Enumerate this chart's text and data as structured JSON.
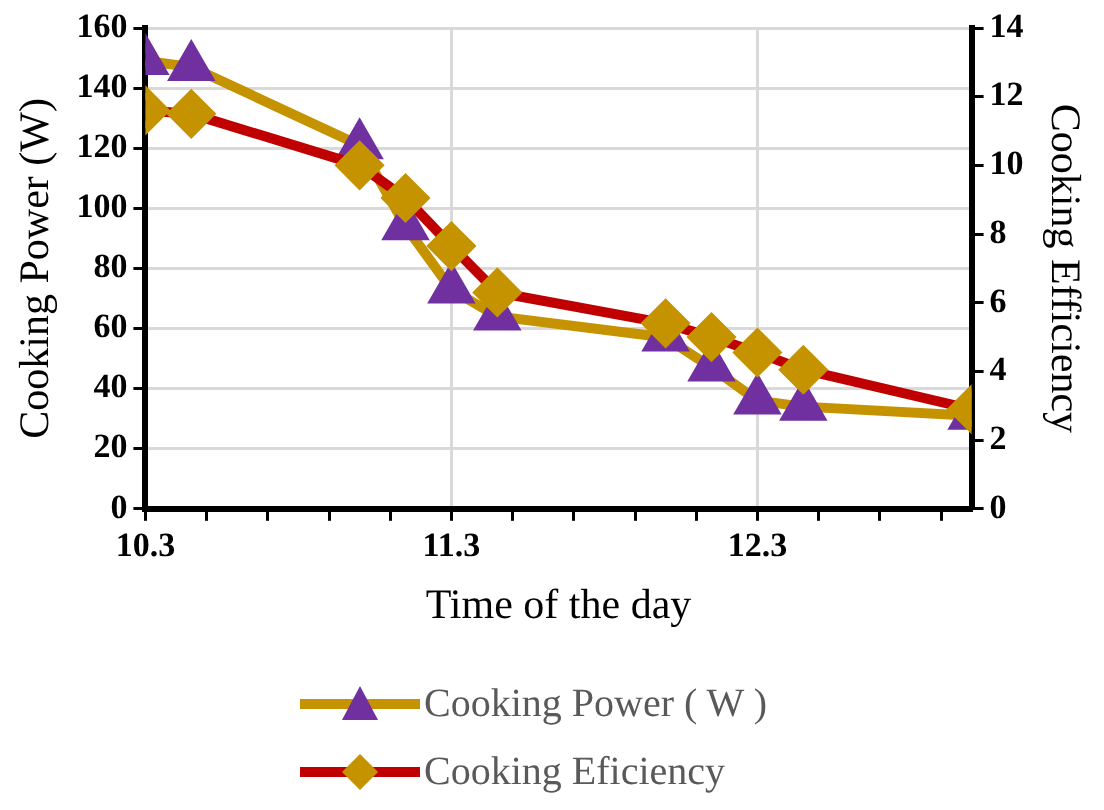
{
  "chart_data": {
    "type": "line",
    "xlabel": "Time of the day",
    "ylabel": "Cooking Power (W)",
    "y2label": "Cooking Efficiency",
    "x": [
      10.3,
      10.45,
      11.0,
      11.15,
      11.3,
      11.45,
      12.0,
      12.15,
      12.3,
      12.45,
      13.0
    ],
    "xlim": [
      10.3,
      13.0
    ],
    "xticks": [
      10.3,
      {
        "value": 10.5,
        "label": null
      },
      {
        "value": 10.7,
        "label": null
      },
      {
        "value": 10.9,
        "label": null
      },
      {
        "value": 11.1,
        "label": null
      },
      11.3,
      {
        "value": 11.5,
        "label": null
      },
      {
        "value": 11.7,
        "label": null
      },
      {
        "value": 11.9,
        "label": null
      },
      {
        "value": 12.1,
        "label": null
      },
      12.3,
      {
        "value": 12.5,
        "label": null
      },
      {
        "value": 12.7,
        "label": null
      },
      {
        "value": 12.9,
        "label": null
      }
    ],
    "ylim": [
      0,
      160
    ],
    "yticks": [
      0,
      20,
      40,
      60,
      80,
      100,
      120,
      140,
      160
    ],
    "y2lim": [
      0,
      14
    ],
    "y2ticks": [
      0,
      2,
      4,
      6,
      8,
      10,
      12,
      14
    ],
    "grid": true,
    "legend": "bottom",
    "line_style": "solid",
    "series": [
      {
        "name": "Cooking Power ( W )",
        "color": "#c59300",
        "marker": "triangle",
        "values": [
          149,
          147,
          121,
          94,
          73,
          64,
          57,
          47,
          36,
          34,
          31
        ]
      },
      {
        "name": "Cooking Eficiency",
        "color": "#c00000",
        "marker": "diamond",
        "axis": "y2",
        "values": [
          11.6,
          11.5,
          10.0,
          9.05,
          7.65,
          6.3,
          5.4,
          5.0,
          4.55,
          4.05,
          2.9
        ]
      }
    ]
  }
}
